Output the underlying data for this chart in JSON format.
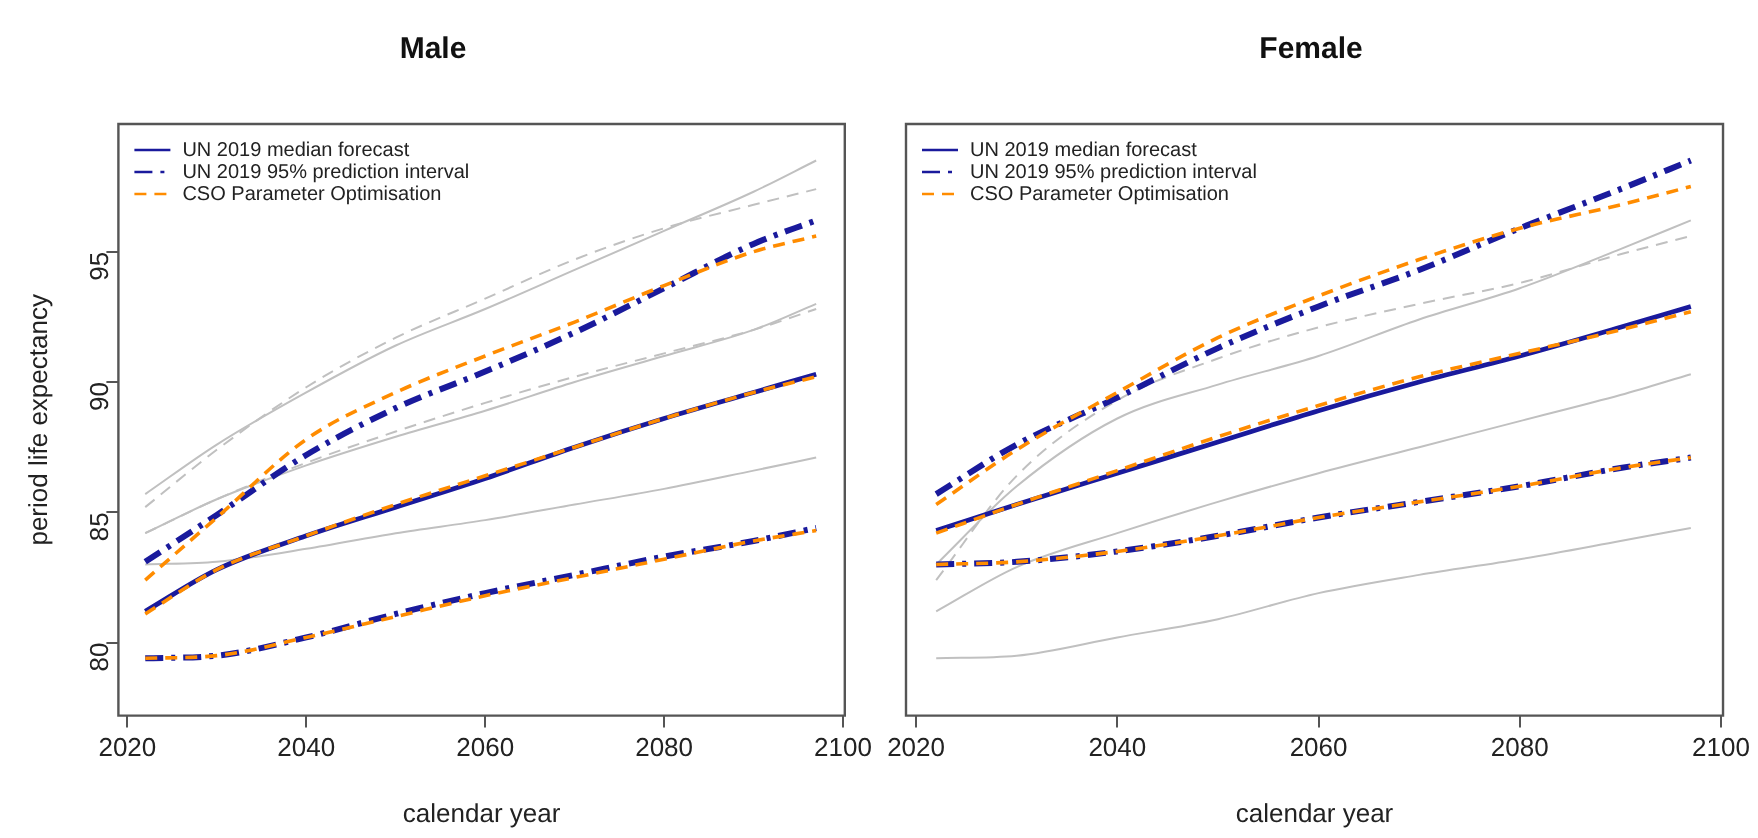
{
  "chart_data": [
    {
      "type": "line",
      "title": "Male",
      "xlabel": "calendar year",
      "ylabel": "period life expectancy",
      "x": [
        2022,
        2030,
        2040,
        2050,
        2060,
        2070,
        2080,
        2090,
        2097
      ],
      "xlim": [
        2019,
        2100.2
      ],
      "xticks": [
        2020,
        2040,
        2060,
        2080,
        2100
      ],
      "ylim": [
        77.2,
        99.9
      ],
      "yticks": [
        80,
        85,
        90,
        95
      ],
      "legend": "top left",
      "marker": "none",
      "series": [
        {
          "color": "#c0c0c0",
          "line_style": "solid",
          "values": [
            85.7,
            87.6,
            89.6,
            91.4,
            92.8,
            94.3,
            95.8,
            97.3,
            98.5
          ]
        },
        {
          "color": "#c0c0c0",
          "line_style": "dashed",
          "values": [
            85.2,
            87.4,
            89.8,
            91.7,
            93.2,
            94.7,
            95.9,
            96.8,
            97.4
          ]
        },
        {
          "color": "#c0c0c0",
          "line_style": "solid",
          "values": [
            84.2,
            85.5,
            86.8,
            87.9,
            88.9,
            90.0,
            91.0,
            92.0,
            93.0
          ]
        },
        {
          "color": "#c0c0c0",
          "line_style": "dashed",
          "values": [
            84.2,
            85.5,
            86.9,
            88.1,
            89.2,
            90.2,
            91.1,
            92.0,
            92.8
          ]
        },
        {
          "color": "#c0c0c0",
          "line_style": "solid",
          "values": [
            83.0,
            83.1,
            83.6,
            84.2,
            84.7,
            85.3,
            85.9,
            86.6,
            87.1
          ]
        },
        {
          "name": "UN 2019 median forecast",
          "color": "#1a1a9c",
          "line_style": "solid",
          "values": [
            81.2,
            82.8,
            84.1,
            85.2,
            86.3,
            87.5,
            88.6,
            89.6,
            90.3
          ]
        },
        {
          "name": "UN 2019 95% prediction interval",
          "color": "#1a1a9c",
          "line_style": "dashdot",
          "values": [
            83.1,
            84.9,
            87.2,
            89.0,
            90.4,
            91.9,
            93.6,
            95.3,
            96.2
          ]
        },
        {
          "color": "#1a1a9c",
          "line_style": "dashdot",
          "values": [
            79.4,
            79.5,
            80.2,
            81.1,
            81.9,
            82.6,
            83.3,
            83.9,
            84.4
          ]
        },
        {
          "name": "CSO Parameter Optimisation",
          "color": "#ff8c00",
          "line_style": "dashed",
          "values": [
            82.4,
            84.8,
            87.8,
            89.6,
            91.0,
            92.3,
            93.7,
            95.0,
            95.6
          ]
        },
        {
          "color": "#ff8c00",
          "line_style": "dashed",
          "values": [
            81.1,
            82.8,
            84.1,
            85.3,
            86.4,
            87.5,
            88.6,
            89.6,
            90.2
          ]
        },
        {
          "color": "#ff8c00",
          "line_style": "dashed",
          "values": [
            79.4,
            79.5,
            80.2,
            81.0,
            81.8,
            82.5,
            83.2,
            83.9,
            84.3
          ]
        }
      ]
    },
    {
      "type": "line",
      "title": "Female",
      "xlabel": "calendar year",
      "x": [
        2022,
        2030,
        2040,
        2050,
        2060,
        2070,
        2080,
        2090,
        2097
      ],
      "xlim": [
        2019,
        2100.2
      ],
      "xticks": [
        2020,
        2040,
        2060,
        2080,
        2100
      ],
      "ylim": [
        77.2,
        99.9
      ],
      "yticks": [
        80,
        85,
        90,
        95
      ],
      "tick_labels": "x",
      "legend": "top left",
      "marker": "none",
      "series": [
        {
          "color": "#c0c0c0",
          "line_style": "solid",
          "values": [
            83.0,
            86.0,
            88.6,
            89.9,
            91.0,
            92.4,
            93.6,
            95.1,
            96.2
          ]
        },
        {
          "color": "#c0c0c0",
          "line_style": "dashed",
          "values": [
            82.4,
            86.4,
            89.3,
            90.9,
            92.1,
            93.0,
            93.8,
            94.9,
            95.6
          ]
        },
        {
          "color": "#c0c0c0",
          "line_style": "solid",
          "values": [
            81.2,
            82.9,
            84.2,
            85.4,
            86.5,
            87.5,
            88.5,
            89.5,
            90.3
          ]
        },
        {
          "color": "#c0c0c0",
          "line_style": "solid",
          "values": [
            79.4,
            79.5,
            80.2,
            80.9,
            81.9,
            82.6,
            83.2,
            83.9,
            84.4
          ]
        },
        {
          "name": "UN 2019 median forecast",
          "color": "#1a1a9c",
          "line_style": "solid",
          "values": [
            84.3,
            85.3,
            86.5,
            87.7,
            88.9,
            90.0,
            91.0,
            92.1,
            92.9
          ]
        },
        {
          "name": "UN 2019 95% prediction interval",
          "color": "#1a1a9c",
          "line_style": "dashdot",
          "values": [
            85.7,
            87.6,
            89.4,
            91.3,
            92.9,
            94.3,
            95.9,
            97.4,
            98.5
          ]
        },
        {
          "color": "#1a1a9c",
          "line_style": "dashdot",
          "values": [
            83.0,
            83.1,
            83.5,
            84.1,
            84.8,
            85.4,
            86.0,
            86.7,
            87.1
          ]
        },
        {
          "name": "CSO Parameter Optimisation",
          "color": "#ff8c00",
          "line_style": "dashed",
          "values": [
            85.3,
            87.4,
            89.6,
            91.7,
            93.3,
            94.7,
            95.9,
            96.8,
            97.5
          ]
        },
        {
          "color": "#ff8c00",
          "line_style": "dashed",
          "values": [
            84.2,
            85.3,
            86.6,
            87.9,
            89.1,
            90.2,
            91.1,
            92.0,
            92.7
          ]
        },
        {
          "color": "#ff8c00",
          "line_style": "dashed",
          "values": [
            83.0,
            83.1,
            83.5,
            84.1,
            84.8,
            85.4,
            86.0,
            86.7,
            87.1
          ]
        }
      ]
    }
  ]
}
